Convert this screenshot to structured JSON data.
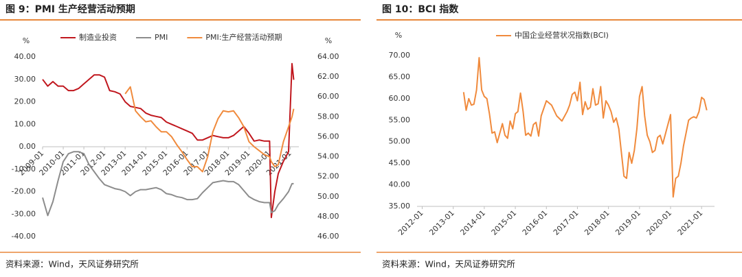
{
  "chart_data": [
    {
      "type": "line",
      "title": "图 9：PMI 生产经营活动预期",
      "source": "资料来源：Wind，天风证券研究所",
      "ylabel": "%",
      "y2label": "%",
      "legend": "top",
      "x": [
        "2009-01",
        "2009-04",
        "2009-07",
        "2009-10",
        "2010-01",
        "2010-04",
        "2010-07",
        "2010-10",
        "2011-01",
        "2011-04",
        "2011-07",
        "2011-10",
        "2012-01",
        "2012-04",
        "2012-07",
        "2012-10",
        "2013-01",
        "2013-04",
        "2013-07",
        "2013-10",
        "2014-01",
        "2014-04",
        "2014-07",
        "2014-10",
        "2015-01",
        "2015-04",
        "2015-07",
        "2015-10",
        "2016-01",
        "2016-04",
        "2016-07",
        "2016-10",
        "2017-01",
        "2017-04",
        "2017-07",
        "2017-10",
        "2018-01",
        "2018-04",
        "2018-07",
        "2018-10",
        "2019-01",
        "2019-04",
        "2019-07",
        "2019-10",
        "2020-01",
        "2020-02",
        "2020-04",
        "2020-06",
        "2020-09",
        "2020-12",
        "2021-02",
        "2021-03"
      ],
      "series": [
        {
          "name": "制造业投资",
          "color": "#c0161d",
          "axis": "y",
          "values": [
            30,
            27,
            29,
            27,
            27,
            25,
            25,
            26,
            28,
            30,
            32,
            32,
            31,
            25,
            24.5,
            23.5,
            20,
            18,
            17.5,
            17,
            15,
            14,
            13.5,
            13,
            11,
            10,
            9,
            8,
            7,
            6,
            3,
            3,
            4,
            5,
            4.5,
            4,
            4,
            5,
            7,
            9,
            6,
            2.5,
            3,
            2.5,
            2.5,
            -31.5,
            -20,
            -12,
            -6.5,
            -2.2,
            37,
            29.8
          ]
        },
        {
          "name": "PMI",
          "color": "#8c8c8c",
          "axis": "y2",
          "values": [
            49.9,
            48.1,
            49.5,
            51.6,
            53.5,
            54.3,
            54.5,
            54.5,
            54.3,
            53.2,
            52.5,
            51.8,
            51.2,
            51.0,
            50.8,
            50.7,
            50.5,
            50.1,
            50.5,
            50.7,
            50.7,
            50.8,
            50.9,
            50.7,
            50.3,
            50.2,
            50.0,
            49.9,
            49.7,
            49.7,
            49.8,
            50.4,
            50.9,
            51.4,
            51.5,
            51.6,
            51.5,
            51.5,
            51.2,
            50.6,
            50.0,
            49.7,
            49.5,
            49.4,
            49.4,
            48.4,
            48.6,
            49.2,
            49.8,
            50.5,
            51.3,
            51.3
          ]
        },
        {
          "name": "PMI:生产经营活动预期",
          "color": "#f08a3c",
          "axis": "y2",
          "values": [
            null,
            null,
            null,
            null,
            null,
            null,
            null,
            null,
            null,
            null,
            null,
            null,
            null,
            null,
            null,
            null,
            60.3,
            61.0,
            58.6,
            58,
            57.5,
            57.6,
            57.0,
            56.5,
            56.5,
            56.0,
            55.2,
            54.5,
            53.7,
            53.0,
            53.0,
            52.5,
            54,
            56.5,
            57.8,
            58.6,
            58.5,
            58.6,
            57.9,
            57.0,
            55.5,
            55.0,
            54.6,
            54.2,
            54.0,
            53.5,
            53.0,
            53.2,
            55.5,
            57.0,
            58.0,
            58.8
          ]
        }
      ],
      "xlim": [
        "2009-01",
        "2021-06"
      ],
      "xticks": [
        "2009-01",
        "2010-01",
        "2011-01",
        "2012-01",
        "2013-01",
        "2014-01",
        "2015-01",
        "2016-01",
        "2017-01",
        "2018-01",
        "2019-01",
        "2020-01",
        "2021-01"
      ],
      "ylim": [
        -40,
        40
      ],
      "yticks": [
        {
          "value": -40,
          "label": "-40.00"
        },
        {
          "value": -30,
          "label": "-30.00"
        },
        {
          "value": -20,
          "label": "-20.00"
        },
        {
          "value": -10,
          "label": "-10.00"
        },
        {
          "value": 0,
          "label": "0.00"
        },
        {
          "value": 10,
          "label": "10.00"
        },
        {
          "value": 20,
          "label": "20.00"
        },
        {
          "value": 30,
          "label": "30.00"
        },
        {
          "value": 40,
          "label": "40.00"
        }
      ],
      "y2lim": [
        46,
        64
      ],
      "y2ticks": [
        {
          "value": 46,
          "label": "46.00"
        },
        {
          "value": 48,
          "label": "48.00"
        },
        {
          "value": 50,
          "label": "50.00"
        },
        {
          "value": 52,
          "label": "52.00"
        },
        {
          "value": 54,
          "label": "54.00"
        },
        {
          "value": 56,
          "label": "56.00"
        },
        {
          "value": 58,
          "label": "58.00"
        },
        {
          "value": 60,
          "label": "60.00"
        },
        {
          "value": 62,
          "label": "62.00"
        },
        {
          "value": 64,
          "label": "64.00"
        }
      ]
    },
    {
      "type": "line",
      "title": "图 10：BCI 指数",
      "source": "资料来源：Wind，天风证券研究所",
      "ylabel": "%",
      "legend": "top",
      "x": [
        "2013-05",
        "2013-06",
        "2013-07",
        "2013-08",
        "2013-09",
        "2013-10",
        "2013-11",
        "2013-12",
        "2014-01",
        "2014-02",
        "2014-03",
        "2014-04",
        "2014-05",
        "2014-06",
        "2014-07",
        "2014-08",
        "2014-09",
        "2014-10",
        "2014-11",
        "2014-12",
        "2015-01",
        "2015-02",
        "2015-03",
        "2015-04",
        "2015-05",
        "2015-06",
        "2015-07",
        "2015-08",
        "2015-09",
        "2015-10",
        "2015-11",
        "2016-01",
        "2016-03",
        "2016-05",
        "2016-07",
        "2016-09",
        "2016-10",
        "2016-11",
        "2016-12",
        "2017-01",
        "2017-02",
        "2017-03",
        "2017-04",
        "2017-05",
        "2017-06",
        "2017-07",
        "2017-08",
        "2017-09",
        "2017-10",
        "2017-11",
        "2017-12",
        "2018-01",
        "2018-02",
        "2018-03",
        "2018-04",
        "2018-05",
        "2018-07",
        "2018-08",
        "2018-09",
        "2018-10",
        "2018-11",
        "2018-12",
        "2019-01",
        "2019-02",
        "2019-03",
        "2019-04",
        "2019-05",
        "2019-06",
        "2019-07",
        "2019-08",
        "2019-09",
        "2019-10",
        "2020-01",
        "2020-02",
        "2020-03",
        "2020-04",
        "2020-05",
        "2020-06",
        "2020-07",
        "2020-08",
        "2020-09",
        "2020-10",
        "2020-11",
        "2020-12",
        "2021-01",
        "2021-02",
        "2021-03"
      ],
      "series": [
        {
          "name": "中国企业经营状况指数(BCI)",
          "color": "#f08a3c",
          "axis": "y",
          "values": [
            61.5,
            57.3,
            60,
            58.5,
            58.7,
            62,
            69.5,
            62,
            60.5,
            60,
            56.5,
            52,
            52.3,
            49.8,
            52,
            54.2,
            51.5,
            50.8,
            54.8,
            53,
            56.5,
            57,
            61.3,
            57,
            51.5,
            52,
            51.3,
            54,
            54.5,
            51.3,
            56,
            59.5,
            58.5,
            56,
            54.8,
            57,
            58.5,
            61,
            61.5,
            59.5,
            63.8,
            56.3,
            59.3,
            57.5,
            58,
            62.3,
            58.5,
            58.8,
            62.8,
            55.5,
            59.5,
            58.5,
            57,
            54.5,
            55.5,
            53,
            42,
            41.5,
            47.5,
            45,
            48,
            53,
            60.5,
            62.8,
            56,
            51.5,
            50,
            47.5,
            48,
            51,
            51.5,
            49.5,
            56.3,
            37.2,
            41.5,
            42,
            45,
            49,
            52,
            55,
            55.5,
            55.8,
            55.5,
            57,
            60.3,
            59.8,
            57.3
          ]
        }
      ],
      "xlim": [
        "2011-11",
        "2021-06"
      ],
      "xticks": [
        "2012-01",
        "2013-01",
        "2014-01",
        "2015-01",
        "2016-01",
        "2017-01",
        "2018-01",
        "2019-01",
        "2020-01",
        "2021-01"
      ],
      "ylim": [
        35,
        70
      ],
      "yticks": [
        {
          "value": 35,
          "label": "35.00"
        },
        {
          "value": 40,
          "label": "40.00"
        },
        {
          "value": 45,
          "label": "45.00"
        },
        {
          "value": 50,
          "label": "50.00"
        },
        {
          "value": 55,
          "label": "55.00"
        },
        {
          "value": 60,
          "label": "60.00"
        },
        {
          "value": 65,
          "label": "65.00"
        },
        {
          "value": 70,
          "label": "70.00"
        }
      ]
    }
  ]
}
